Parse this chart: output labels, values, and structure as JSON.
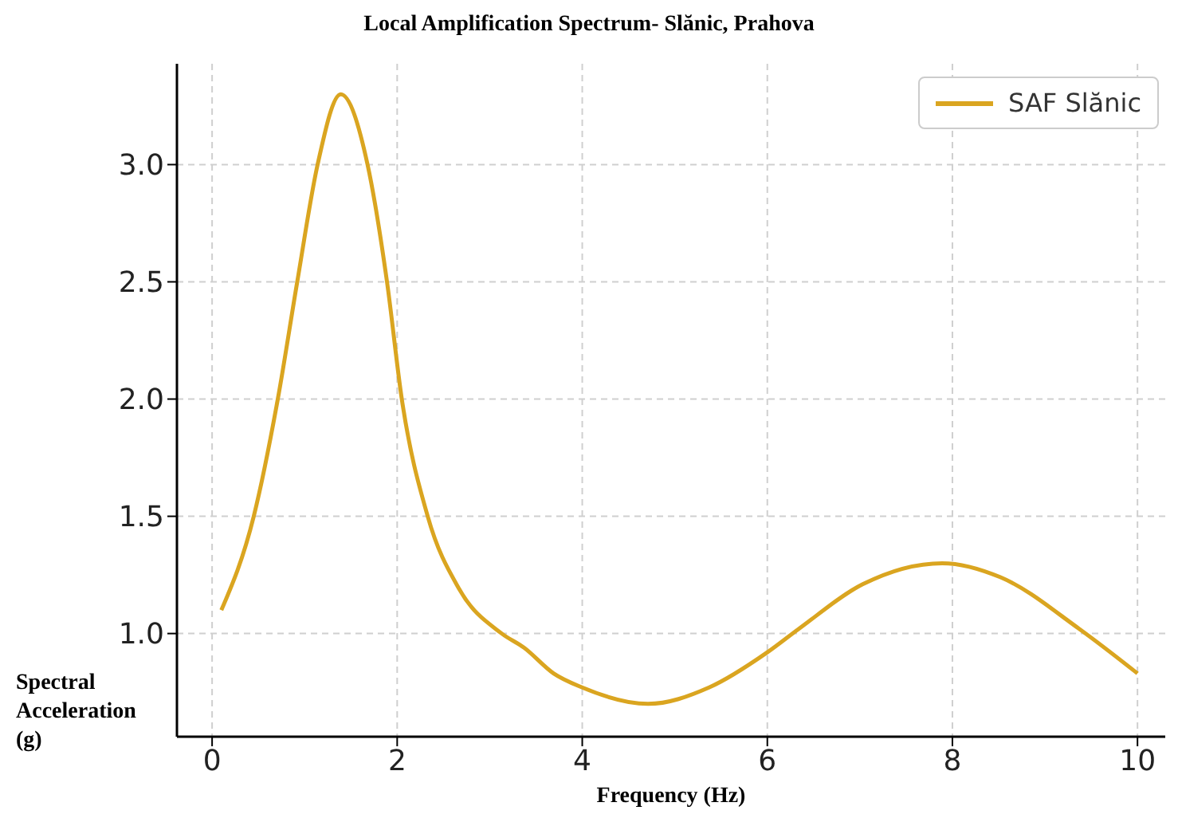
{
  "chart_data": {
    "type": "line",
    "title": "Local Amplification Spectrum- Slănic, Prahova",
    "xlabel": "Frequency (Hz)",
    "ylabel": "Spectral Acceleration (g)",
    "x": [
      0.1,
      0.45,
      0.71,
      0.92,
      1.14,
      1.39,
      1.68,
      1.89,
      2.05,
      2.33,
      2.67,
      3.13,
      3.37,
      3.69,
      4,
      4.71,
      5.37,
      6,
      6.34,
      7.03,
      7.89,
      8.52,
      9.37,
      10
    ],
    "series": [
      {
        "name": "SAF Slănic",
        "color": "#daa520",
        "values": [
          1.1,
          1.5,
          2.0,
          2.5,
          3.0,
          3.3,
          3.0,
          2.5,
          2.0,
          1.5,
          1.19,
          1.0,
          0.94,
          0.83,
          0.77,
          0.7,
          0.77,
          0.92,
          1.02,
          1.21,
          1.3,
          1.24,
          1.02,
          0.83
        ]
      }
    ],
    "xlim": [
      -0.38,
      10.3
    ],
    "xticks": [
      0,
      2,
      4,
      6,
      8,
      10
    ],
    "ylim": [
      0.56,
      3.43
    ],
    "yticks": [
      {
        "value": 1,
        "label": "1.0"
      },
      {
        "value": 1.5,
        "label": "1.5"
      },
      {
        "value": 2,
        "label": "2.0"
      },
      {
        "value": 2.5,
        "label": "2.5"
      },
      {
        "value": 3,
        "label": "3.0"
      }
    ],
    "grid": true,
    "legend": "top right",
    "line_style": "solid",
    "marker": "none"
  }
}
